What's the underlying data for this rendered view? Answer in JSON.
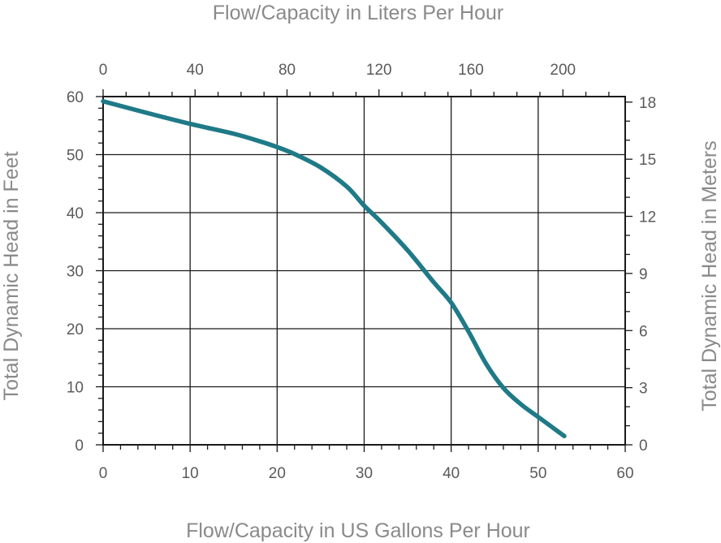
{
  "chart_data": {
    "type": "line",
    "title": "",
    "x_bottom": {
      "label": "Flow/Capacity in US Gallons Per Hour",
      "min": 0,
      "max": 60,
      "ticks": [
        "0",
        "10",
        "20",
        "30",
        "40",
        "50",
        "60"
      ]
    },
    "x_top": {
      "label": "Flow/Capacity in Liters Per Hour",
      "min": 0,
      "max": 227.1,
      "ticks": [
        {
          "value": 0,
          "label": "0"
        },
        {
          "value": 40,
          "label": "40"
        },
        {
          "value": 80,
          "label": "80"
        },
        {
          "value": 120,
          "label": "120"
        },
        {
          "value": 160,
          "label": "160"
        },
        {
          "value": 200,
          "label": "200"
        }
      ]
    },
    "y_left": {
      "label": "Total Dynamic Head in Feet",
      "min": 0,
      "max": 60,
      "ticks": [
        "0",
        "10",
        "20",
        "30",
        "40",
        "50",
        "60"
      ]
    },
    "y_right": {
      "label": "Total Dynamic Head in Meters",
      "min": 0,
      "max": 18.29,
      "ticks": [
        {
          "value": 0,
          "label": "0"
        },
        {
          "value": 3,
          "label": "3"
        },
        {
          "value": 6,
          "label": "6"
        },
        {
          "value": 9,
          "label": "9"
        },
        {
          "value": 12,
          "label": "12"
        },
        {
          "value": 15,
          "label": "15"
        },
        {
          "value": 18,
          "label": "18"
        }
      ]
    },
    "grid": true,
    "line_color": "#1f7a87",
    "series": [
      {
        "x": [
          0,
          5,
          10,
          15,
          18,
          20,
          22,
          25,
          28,
          30,
          32,
          35,
          38,
          40,
          42,
          44,
          46,
          48,
          50,
          52,
          53
        ],
        "y": [
          59.2,
          57.2,
          55.3,
          53.6,
          52.3,
          51.3,
          50.1,
          47.8,
          44.5,
          41.2,
          38.3,
          33.5,
          28.0,
          24.5,
          19.5,
          14.0,
          9.8,
          7.0,
          4.8,
          2.6,
          1.5
        ]
      }
    ]
  }
}
